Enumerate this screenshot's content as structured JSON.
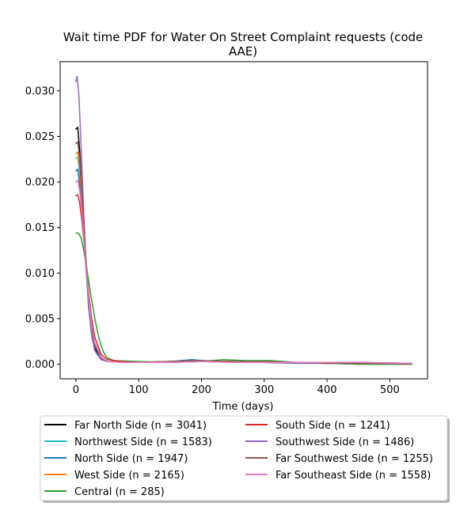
{
  "chart_data": {
    "type": "line",
    "title_lines": [
      "Wait time PDF for Water On Street Complaint  requests (code",
      "AAE)"
    ],
    "xlabel": "Time (days)",
    "ylabel": "",
    "xlim": [
      -25,
      560
    ],
    "ylim": [
      -0.0016,
      0.0332
    ],
    "x_ticks": [
      0,
      100,
      200,
      300,
      400,
      500
    ],
    "x_tick_labels": [
      "0",
      "100",
      "200",
      "300",
      "400",
      "500"
    ],
    "y_ticks": [
      0.0,
      0.005,
      0.01,
      0.015,
      0.02,
      0.025,
      0.03
    ],
    "y_tick_labels": [
      "0.000",
      "0.005",
      "0.010",
      "0.015",
      "0.020",
      "0.025",
      "0.030"
    ],
    "grid": false,
    "legend_position": "below plot, two columns",
    "series": [
      {
        "name": "Far North Side (n = 3041)",
        "color": "#000000",
        "points": [
          [
            0,
            0.0258
          ],
          [
            3,
            0.026
          ],
          [
            6,
            0.0235
          ],
          [
            10,
            0.0185
          ],
          [
            15,
            0.012
          ],
          [
            20,
            0.0068
          ],
          [
            25,
            0.0035
          ],
          [
            30,
            0.0018
          ],
          [
            40,
            0.0006
          ],
          [
            50,
            0.0003
          ],
          [
            75,
            0.0002
          ],
          [
            100,
            0.0002
          ],
          [
            150,
            0.0003
          ],
          [
            190,
            0.0004
          ],
          [
            250,
            0.0003
          ],
          [
            300,
            0.0002
          ],
          [
            400,
            0.0001
          ],
          [
            450,
            0.0001
          ],
          [
            535,
            5e-05
          ]
        ]
      },
      {
        "name": "Northwest Side (n = 1583)",
        "color": "#17becf",
        "points": [
          [
            0,
            0.0226
          ],
          [
            3,
            0.0227
          ],
          [
            6,
            0.021
          ],
          [
            10,
            0.0172
          ],
          [
            15,
            0.0118
          ],
          [
            20,
            0.0072
          ],
          [
            25,
            0.004
          ],
          [
            30,
            0.0021
          ],
          [
            40,
            0.0007
          ],
          [
            50,
            0.0003
          ],
          [
            75,
            0.0002
          ],
          [
            100,
            0.0002
          ],
          [
            150,
            0.0003
          ],
          [
            200,
            0.0004
          ],
          [
            250,
            0.0003
          ],
          [
            300,
            0.0002
          ],
          [
            400,
            0.0001
          ],
          [
            450,
            0.0001
          ],
          [
            535,
            5e-05
          ]
        ]
      },
      {
        "name": "North Side (n = 1947)",
        "color": "#1f77b4",
        "points": [
          [
            0,
            0.0212
          ],
          [
            3,
            0.0214
          ],
          [
            6,
            0.0198
          ],
          [
            10,
            0.0164
          ],
          [
            15,
            0.0114
          ],
          [
            20,
            0.0071
          ],
          [
            25,
            0.004
          ],
          [
            30,
            0.0021
          ],
          [
            40,
            0.0007
          ],
          [
            50,
            0.0003
          ],
          [
            75,
            0.0002
          ],
          [
            100,
            0.0002
          ],
          [
            150,
            0.0003
          ],
          [
            185,
            0.0005
          ],
          [
            220,
            0.0003
          ],
          [
            300,
            0.0002
          ],
          [
            350,
            0.0001
          ],
          [
            400,
            0.0001
          ],
          [
            450,
            0.0
          ],
          [
            535,
            0.0
          ]
        ]
      },
      {
        "name": "West Side (n = 2165)",
        "color": "#ff7f0e",
        "points": [
          [
            0,
            0.0231
          ],
          [
            3,
            0.0233
          ],
          [
            6,
            0.0216
          ],
          [
            10,
            0.0177
          ],
          [
            15,
            0.0122
          ],
          [
            20,
            0.0075
          ],
          [
            25,
            0.0042
          ],
          [
            30,
            0.0022
          ],
          [
            40,
            0.0007
          ],
          [
            50,
            0.0003
          ],
          [
            75,
            0.0002
          ],
          [
            100,
            0.0002
          ],
          [
            150,
            0.0003
          ],
          [
            200,
            0.0004
          ],
          [
            250,
            0.0003
          ],
          [
            300,
            0.0003
          ],
          [
            400,
            0.0001
          ],
          [
            450,
            0.0001
          ],
          [
            535,
            5e-05
          ]
        ]
      },
      {
        "name": "Central (n = 285)",
        "color": "#2ca02c",
        "points": [
          [
            0,
            0.0144
          ],
          [
            4,
            0.0144
          ],
          [
            8,
            0.0139
          ],
          [
            12,
            0.0127
          ],
          [
            16,
            0.0111
          ],
          [
            20,
            0.0093
          ],
          [
            25,
            0.0071
          ],
          [
            30,
            0.0051
          ],
          [
            35,
            0.0034
          ],
          [
            40,
            0.0021
          ],
          [
            45,
            0.0012
          ],
          [
            50,
            0.0007
          ],
          [
            60,
            0.0004
          ],
          [
            100,
            0.0003
          ],
          [
            150,
            0.0002
          ],
          [
            200,
            0.0003
          ],
          [
            235,
            0.0005
          ],
          [
            270,
            0.0004
          ],
          [
            310,
            0.0004
          ],
          [
            350,
            0.0002
          ],
          [
            400,
            0.0001
          ],
          [
            450,
            0.0
          ],
          [
            535,
            0.0
          ]
        ]
      },
      {
        "name": "South Side (n = 1241)",
        "color": "#d62728",
        "points": [
          [
            0,
            0.0185
          ],
          [
            3,
            0.0186
          ],
          [
            6,
            0.0177
          ],
          [
            10,
            0.0155
          ],
          [
            15,
            0.0118
          ],
          [
            20,
            0.0081
          ],
          [
            25,
            0.0051
          ],
          [
            30,
            0.003
          ],
          [
            40,
            0.0011
          ],
          [
            50,
            0.0005
          ],
          [
            75,
            0.0003
          ],
          [
            100,
            0.0002
          ],
          [
            150,
            0.0002
          ],
          [
            200,
            0.0003
          ],
          [
            250,
            0.0003
          ],
          [
            300,
            0.0002
          ],
          [
            400,
            0.0001
          ],
          [
            450,
            0.0001
          ],
          [
            535,
            5e-05
          ]
        ]
      },
      {
        "name": "Southwest Side (n = 1486)",
        "color": "#9467bd",
        "points": [
          [
            0,
            0.031
          ],
          [
            2,
            0.0316
          ],
          [
            5,
            0.0293
          ],
          [
            8,
            0.0245
          ],
          [
            12,
            0.0175
          ],
          [
            16,
            0.0112
          ],
          [
            20,
            0.0064
          ],
          [
            25,
            0.0032
          ],
          [
            30,
            0.0015
          ],
          [
            40,
            0.0005
          ],
          [
            50,
            0.0003
          ],
          [
            75,
            0.0002
          ],
          [
            100,
            0.0002
          ],
          [
            150,
            0.0003
          ],
          [
            200,
            0.0003
          ],
          [
            250,
            0.0002
          ],
          [
            300,
            0.0002
          ],
          [
            400,
            0.0001
          ],
          [
            450,
            0.0002
          ],
          [
            535,
            0.0001
          ]
        ]
      },
      {
        "name": "Far Southwest Side (n = 1255)",
        "color": "#8c564b",
        "points": [
          [
            0,
            0.0242
          ],
          [
            3,
            0.0244
          ],
          [
            6,
            0.0226
          ],
          [
            10,
            0.0185
          ],
          [
            15,
            0.0127
          ],
          [
            20,
            0.0077
          ],
          [
            25,
            0.0043
          ],
          [
            30,
            0.0022
          ],
          [
            40,
            0.0007
          ],
          [
            50,
            0.0003
          ],
          [
            75,
            0.0002
          ],
          [
            100,
            0.0002
          ],
          [
            150,
            0.0003
          ],
          [
            200,
            0.0004
          ],
          [
            250,
            0.0003
          ],
          [
            300,
            0.0003
          ],
          [
            400,
            0.0001
          ],
          [
            450,
            0.0001
          ],
          [
            535,
            5e-05
          ]
        ]
      },
      {
        "name": "Far Southeast Side (n = 1558)",
        "color": "#e377c2",
        "points": [
          [
            0,
            0.02
          ],
          [
            3,
            0.0202
          ],
          [
            6,
            0.019
          ],
          [
            10,
            0.0162
          ],
          [
            15,
            0.0118
          ],
          [
            20,
            0.0077
          ],
          [
            25,
            0.0045
          ],
          [
            30,
            0.0024
          ],
          [
            40,
            0.0008
          ],
          [
            50,
            0.0003
          ],
          [
            75,
            0.0002
          ],
          [
            100,
            0.0002
          ],
          [
            150,
            0.0002
          ],
          [
            200,
            0.0003
          ],
          [
            250,
            0.0002
          ],
          [
            300,
            0.0002
          ],
          [
            400,
            0.0002
          ],
          [
            450,
            0.0002
          ],
          [
            535,
            0.0001
          ]
        ]
      }
    ]
  }
}
